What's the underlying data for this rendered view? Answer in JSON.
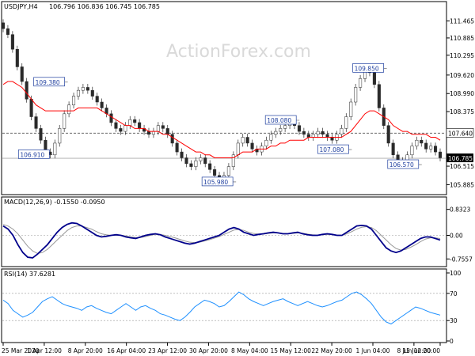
{
  "watermark": "ActionForex.com",
  "chart_data": [
    {
      "type": "candlestick",
      "title": "USDJPY,H4",
      "ohlc_header": "106.796 106.836 106.745 106.785",
      "y_ticks": [
        "111.465",
        "110.885",
        "110.295",
        "109.620",
        "108.990",
        "108.375",
        "107.640",
        "106.785",
        "106.515",
        "105.885"
      ],
      "y_tick_values": [
        111.465,
        110.885,
        110.295,
        109.62,
        108.99,
        108.375,
        107.64,
        106.785,
        106.515,
        105.885
      ],
      "ylim": [
        105.6,
        111.8
      ],
      "x_ticks": [
        "25 Mar 2020",
        "1 Apr 12:00",
        "8 Apr 20:00",
        "16 Apr 04:00",
        "23 Apr 12:00",
        "30 Apr 20:00",
        "8 May 04:00",
        "15 May 12:00",
        "22 May 20:00",
        "1 Jun 04:00",
        "8 Jun 12:00",
        "15 Jun 20:00"
      ],
      "x_tick_positions": [
        0,
        0.094,
        0.188,
        0.282,
        0.376,
        0.47,
        0.564,
        0.658,
        0.752,
        0.846,
        0.94,
        1.0
      ],
      "close_series": [
        111.2,
        111.0,
        110.5,
        109.9,
        109.4,
        108.8,
        108.2,
        107.8,
        107.4,
        107.0,
        106.9,
        107.3,
        107.8,
        108.3,
        108.6,
        108.9,
        109.1,
        109.2,
        109.1,
        108.9,
        108.7,
        108.5,
        108.3,
        108.0,
        107.8,
        107.7,
        107.9,
        108.1,
        108.0,
        107.8,
        107.7,
        107.6,
        107.7,
        107.9,
        107.8,
        107.6,
        107.3,
        107.0,
        106.8,
        106.6,
        106.5,
        106.7,
        106.8,
        106.6,
        106.4,
        106.2,
        106.0,
        106.2,
        106.5,
        106.9,
        107.3,
        107.5,
        107.3,
        107.1,
        107.0,
        107.2,
        107.4,
        107.6,
        107.7,
        107.8,
        107.9,
        108.0,
        107.9,
        107.7,
        107.6,
        107.5,
        107.6,
        107.7,
        107.6,
        107.5,
        107.4,
        107.6,
        107.8,
        108.2,
        108.7,
        109.2,
        109.5,
        109.8,
        109.7,
        109.3,
        108.5,
        107.9,
        107.3,
        106.9,
        106.7,
        106.6,
        106.9,
        107.2,
        107.4,
        107.3,
        107.1,
        107.2,
        107.0,
        106.8
      ],
      "ma_series": [
        109.3,
        109.4,
        109.4,
        109.3,
        109.2,
        109.0,
        108.8,
        108.6,
        108.5,
        108.4,
        108.4,
        108.4,
        108.4,
        108.4,
        108.4,
        108.4,
        108.5,
        108.5,
        108.5,
        108.5,
        108.5,
        108.4,
        108.3,
        108.2,
        108.1,
        108.0,
        107.9,
        107.9,
        107.8,
        107.8,
        107.8,
        107.7,
        107.7,
        107.7,
        107.6,
        107.6,
        107.5,
        107.4,
        107.3,
        107.2,
        107.1,
        107.0,
        107.0,
        106.9,
        106.9,
        106.8,
        106.8,
        106.8,
        106.8,
        106.8,
        106.9,
        107.0,
        107.0,
        107.0,
        107.1,
        107.1,
        107.1,
        107.2,
        107.2,
        107.3,
        107.3,
        107.4,
        107.4,
        107.4,
        107.4,
        107.5,
        107.5,
        107.5,
        107.5,
        107.5,
        107.5,
        107.5,
        107.5,
        107.6,
        107.7,
        107.9,
        108.1,
        108.3,
        108.4,
        108.4,
        108.3,
        108.2,
        108.1,
        107.9,
        107.8,
        107.7,
        107.7,
        107.6,
        107.6,
        107.6,
        107.6,
        107.5,
        107.5,
        107.4
      ],
      "ma_color": "#ff0000",
      "price_color": "#2a2a2a",
      "reference_level": 107.64,
      "last_price": "106.785",
      "annotations": [
        {
          "text": "109.380",
          "value": 109.38,
          "pos": 0.07
        },
        {
          "text": "106.910",
          "value": 106.91,
          "pos": 0.035
        },
        {
          "text": "105.980",
          "value": 105.98,
          "pos": 0.455
        },
        {
          "text": "108.080",
          "value": 108.08,
          "pos": 0.6
        },
        {
          "text": "107.080",
          "value": 107.08,
          "pos": 0.72
        },
        {
          "text": "109.850",
          "value": 109.85,
          "pos": 0.8
        },
        {
          "text": "106.570",
          "value": 106.57,
          "pos": 0.88
        }
      ]
    },
    {
      "type": "line",
      "title": "MACD(12,26,9) -0.1550 -0.0950",
      "y_ticks": [
        "0.8323",
        "0.00",
        "-0.7557"
      ],
      "y_tick_values": [
        0.8323,
        0.0,
        -0.7557
      ],
      "ylim": [
        -0.95,
        0.95
      ],
      "series": [
        {
          "color": "#00008b",
          "values": [
            0.3,
            0.2,
            0.0,
            -0.3,
            -0.55,
            -0.7,
            -0.72,
            -0.6,
            -0.45,
            -0.3,
            -0.1,
            0.1,
            0.25,
            0.35,
            0.4,
            0.38,
            0.3,
            0.2,
            0.1,
            0.0,
            -0.05,
            -0.03,
            0.0,
            0.02,
            0.0,
            -0.05,
            -0.08,
            -0.1,
            -0.05,
            0.0,
            0.03,
            0.05,
            0.02,
            -0.05,
            -0.1,
            -0.15,
            -0.2,
            -0.25,
            -0.28,
            -0.25,
            -0.2,
            -0.15,
            -0.1,
            -0.05,
            0.0,
            0.1,
            0.2,
            0.25,
            0.2,
            0.1,
            0.05,
            0.0,
            0.03,
            0.05,
            0.08,
            0.1,
            0.08,
            0.05,
            0.05,
            0.08,
            0.1,
            0.05,
            0.02,
            0.0,
            0.0,
            0.03,
            0.05,
            0.03,
            0.0,
            0.0,
            0.1,
            0.2,
            0.3,
            0.32,
            0.3,
            0.2,
            0.0,
            -0.2,
            -0.4,
            -0.5,
            -0.55,
            -0.5,
            -0.4,
            -0.3,
            -0.2,
            -0.1,
            -0.05,
            -0.05,
            -0.1,
            -0.15
          ]
        },
        {
          "color": "#999999",
          "values": [
            0.35,
            0.3,
            0.2,
            0.05,
            -0.15,
            -0.35,
            -0.5,
            -0.58,
            -0.55,
            -0.45,
            -0.3,
            -0.15,
            0.0,
            0.15,
            0.25,
            0.3,
            0.3,
            0.25,
            0.2,
            0.12,
            0.05,
            0.02,
            0.0,
            0.0,
            0.0,
            -0.02,
            -0.05,
            -0.07,
            -0.07,
            -0.04,
            0.0,
            0.03,
            0.03,
            0.0,
            -0.04,
            -0.08,
            -0.13,
            -0.18,
            -0.22,
            -0.23,
            -0.22,
            -0.18,
            -0.14,
            -0.09,
            -0.04,
            0.03,
            0.1,
            0.17,
            0.19,
            0.16,
            0.1,
            0.06,
            0.04,
            0.04,
            0.06,
            0.08,
            0.08,
            0.06,
            0.05,
            0.06,
            0.08,
            0.07,
            0.04,
            0.02,
            0.01,
            0.02,
            0.03,
            0.03,
            0.01,
            0.0,
            0.05,
            0.12,
            0.2,
            0.26,
            0.28,
            0.25,
            0.15,
            0.0,
            -0.15,
            -0.3,
            -0.42,
            -0.47,
            -0.45,
            -0.38,
            -0.3,
            -0.2,
            -0.12,
            -0.08,
            -0.08,
            -0.1
          ]
        }
      ]
    },
    {
      "type": "line",
      "title": "RSI(14) 37.6281",
      "y_ticks": [
        "100",
        "70",
        "30",
        "0"
      ],
      "y_tick_values": [
        100,
        70,
        30,
        0
      ],
      "ylim": [
        0,
        100
      ],
      "levels": [
        70,
        30
      ],
      "series": [
        {
          "color": "#1e90ff",
          "values": [
            60,
            55,
            45,
            40,
            35,
            38,
            42,
            50,
            58,
            62,
            65,
            60,
            55,
            52,
            50,
            48,
            45,
            50,
            52,
            48,
            45,
            42,
            40,
            45,
            50,
            55,
            50,
            45,
            50,
            52,
            48,
            45,
            40,
            38,
            35,
            32,
            30,
            35,
            42,
            50,
            55,
            60,
            58,
            55,
            50,
            52,
            58,
            65,
            72,
            68,
            62,
            58,
            55,
            52,
            55,
            58,
            60,
            62,
            58,
            55,
            52,
            55,
            58,
            55,
            52,
            50,
            52,
            55,
            58,
            60,
            65,
            70,
            72,
            68,
            62,
            55,
            45,
            35,
            28,
            25,
            30,
            35,
            40,
            45,
            50,
            48,
            45,
            42,
            40,
            38
          ]
        }
      ]
    }
  ]
}
